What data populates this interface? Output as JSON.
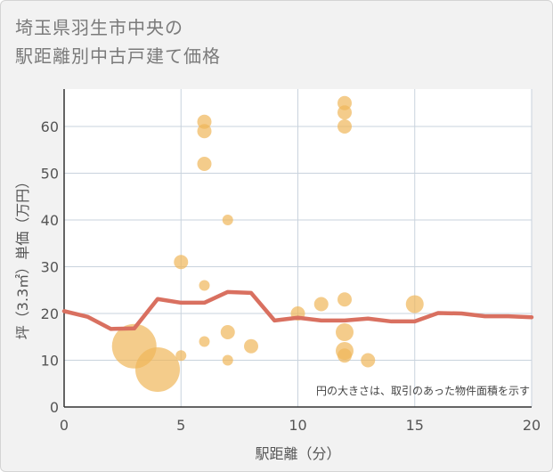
{
  "title_line1": "埼玉県羽生市中央の",
  "title_line2": "駅距離別中古戸建て価格",
  "chart_data": {
    "type": "scatter",
    "title": "埼玉県羽生市中央の駅距離別中古戸建て価格",
    "xlabel": "駅距離（分）",
    "ylabel": "坪（3.3㎡）単価（万円）",
    "xlim": [
      0,
      20
    ],
    "ylim": [
      0,
      68
    ],
    "xticks": [
      "0",
      "5",
      "10",
      "15",
      "20"
    ],
    "yticks": [
      "0",
      "10",
      "20",
      "30",
      "40",
      "50",
      "60"
    ],
    "xtick_values": [
      0,
      5,
      10,
      15,
      20
    ],
    "ytick_values": [
      0,
      10,
      20,
      30,
      40,
      50,
      60
    ],
    "grid": true,
    "annotation": "円の大きさは、取引のあった物件面積を示す",
    "colors": {
      "points": "#f0b75a",
      "line": "#d97060",
      "grid": "#c9d3dd"
    },
    "points": [
      {
        "x": 3,
        "y": 13,
        "size": 5
      },
      {
        "x": 4,
        "y": 8,
        "size": 5
      },
      {
        "x": 5,
        "y": 31,
        "size": 2
      },
      {
        "x": 5,
        "y": 11,
        "size": 1
      },
      {
        "x": 6,
        "y": 61,
        "size": 2
      },
      {
        "x": 6,
        "y": 59,
        "size": 2
      },
      {
        "x": 6,
        "y": 52,
        "size": 2
      },
      {
        "x": 6,
        "y": 26,
        "size": 1
      },
      {
        "x": 6,
        "y": 14,
        "size": 1
      },
      {
        "x": 7,
        "y": 40,
        "size": 1
      },
      {
        "x": 7,
        "y": 16,
        "size": 2
      },
      {
        "x": 7,
        "y": 10,
        "size": 1
      },
      {
        "x": 8,
        "y": 13,
        "size": 2
      },
      {
        "x": 10,
        "y": 20,
        "size": 2
      },
      {
        "x": 11,
        "y": 22,
        "size": 2
      },
      {
        "x": 12,
        "y": 65,
        "size": 2
      },
      {
        "x": 12,
        "y": 63,
        "size": 2
      },
      {
        "x": 12,
        "y": 60,
        "size": 2
      },
      {
        "x": 12,
        "y": 23,
        "size": 2
      },
      {
        "x": 12,
        "y": 16,
        "size": 3
      },
      {
        "x": 12,
        "y": 12,
        "size": 3
      },
      {
        "x": 12,
        "y": 11,
        "size": 2
      },
      {
        "x": 13,
        "y": 10,
        "size": 2
      },
      {
        "x": 15,
        "y": 22,
        "size": 3
      }
    ],
    "trend_line": {
      "x": [
        0,
        1,
        2,
        3,
        4,
        5,
        6,
        7,
        8,
        9,
        10,
        11,
        12,
        13,
        14,
        15,
        16,
        17,
        18,
        19,
        20
      ],
      "y": [
        20.5,
        19.3,
        16.7,
        16.8,
        23.1,
        22.3,
        22.3,
        24.6,
        24.4,
        18.5,
        19.1,
        18.5,
        18.5,
        18.9,
        18.3,
        18.3,
        20.1,
        20.0,
        19.4,
        19.4,
        19.2
      ]
    }
  }
}
